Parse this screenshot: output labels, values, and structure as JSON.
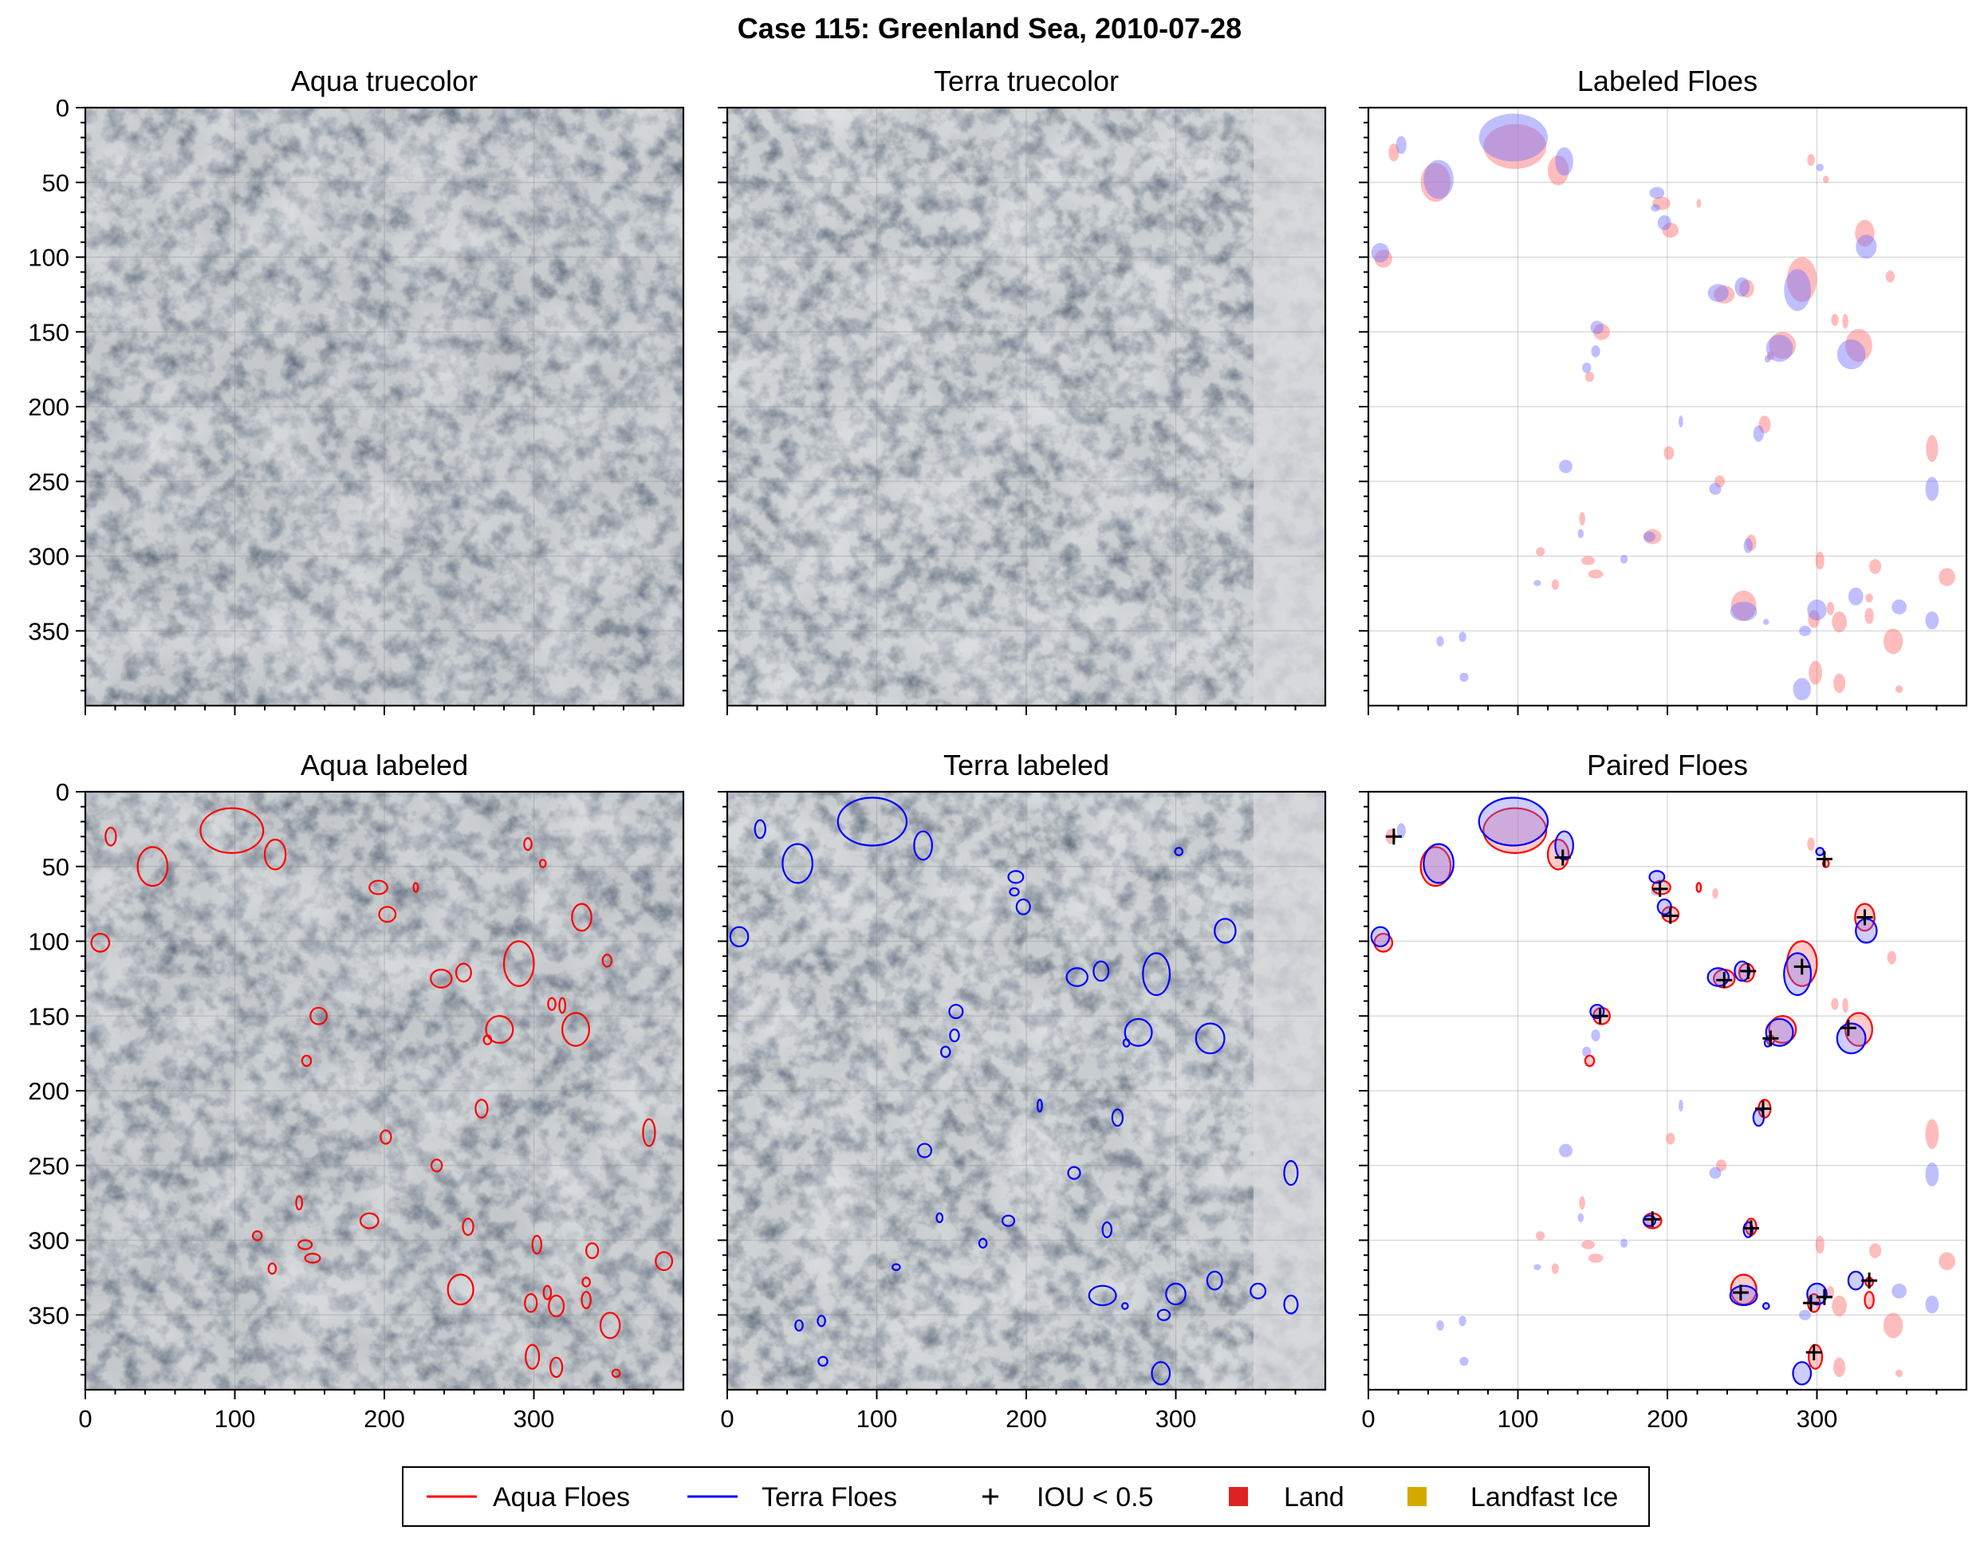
{
  "figure": {
    "suptitle": "Case 115: Greenland Sea, 2010-07-28"
  },
  "panels": {
    "p0": {
      "title": "Aqua truecolor"
    },
    "p1": {
      "title": "Terra truecolor"
    },
    "p2": {
      "title": "Labeled Floes"
    },
    "p3": {
      "title": "Aqua labeled"
    },
    "p4": {
      "title": "Terra labeled"
    },
    "p5": {
      "title": "Paired Floes"
    }
  },
  "legend": {
    "aqua": "Aqua Floes",
    "terra": "Terra Floes",
    "iou": "IOU < 0.5",
    "land": "Land",
    "landfast": "Landfast Ice"
  },
  "colors": {
    "aqua": "#ff0000",
    "terra": "#0000ff",
    "iou": "#000000",
    "land": "#dd2222",
    "landfast": "#d4aa00"
  },
  "chart_data": {
    "type": "image-grid",
    "panel_grid": [
      [
        "Aqua truecolor",
        "Terra truecolor",
        "Labeled Floes"
      ],
      [
        "Aqua labeled",
        "Terra labeled",
        "Paired Floes"
      ]
    ],
    "x_ticks": [
      0,
      100,
      200,
      300
    ],
    "y_ticks": [
      0,
      50,
      100,
      150,
      200,
      250,
      300,
      350
    ],
    "xlim": [
      0,
      400
    ],
    "ylim": [
      400,
      0
    ],
    "grid": true,
    "legend_position": "bottom-center",
    "aqua_floes": [
      {
        "x": 98,
        "y": 26,
        "w": 42,
        "h": 30
      },
      {
        "x": 45,
        "y": 50,
        "w": 20,
        "h": 26
      },
      {
        "x": 127,
        "y": 42,
        "w": 14,
        "h": 20
      },
      {
        "x": 17,
        "y": 30,
        "w": 7,
        "h": 12
      },
      {
        "x": 10,
        "y": 101,
        "w": 12,
        "h": 12
      },
      {
        "x": 196,
        "y": 64,
        "w": 12,
        "h": 9
      },
      {
        "x": 221,
        "y": 64,
        "w": 3,
        "h": 6
      },
      {
        "x": 202,
        "y": 82,
        "w": 11,
        "h": 10
      },
      {
        "x": 296,
        "y": 35,
        "w": 5,
        "h": 8
      },
      {
        "x": 306,
        "y": 48,
        "w": 4,
        "h": 5
      },
      {
        "x": 332,
        "y": 84,
        "w": 13,
        "h": 18
      },
      {
        "x": 349,
        "y": 113,
        "w": 6,
        "h": 8
      },
      {
        "x": 238,
        "y": 125,
        "w": 14,
        "h": 12
      },
      {
        "x": 253,
        "y": 121,
        "w": 10,
        "h": 12
      },
      {
        "x": 290,
        "y": 115,
        "w": 20,
        "h": 30
      },
      {
        "x": 312,
        "y": 142,
        "w": 5,
        "h": 8
      },
      {
        "x": 319,
        "y": 143,
        "w": 4,
        "h": 10
      },
      {
        "x": 328,
        "y": 159,
        "w": 18,
        "h": 22
      },
      {
        "x": 156,
        "y": 150,
        "w": 11,
        "h": 11
      },
      {
        "x": 277,
        "y": 159,
        "w": 18,
        "h": 18
      },
      {
        "x": 269,
        "y": 166,
        "w": 5,
        "h": 6
      },
      {
        "x": 148,
        "y": 180,
        "w": 6,
        "h": 7
      },
      {
        "x": 265,
        "y": 212,
        "w": 8,
        "h": 12
      },
      {
        "x": 377,
        "y": 228,
        "w": 8,
        "h": 18
      },
      {
        "x": 201,
        "y": 231,
        "w": 7,
        "h": 9
      },
      {
        "x": 235,
        "y": 250,
        "w": 7,
        "h": 8
      },
      {
        "x": 190,
        "y": 287,
        "w": 12,
        "h": 10
      },
      {
        "x": 143,
        "y": 275,
        "w": 4,
        "h": 9
      },
      {
        "x": 115,
        "y": 297,
        "w": 6,
        "h": 6
      },
      {
        "x": 256,
        "y": 291,
        "w": 7,
        "h": 11
      },
      {
        "x": 147,
        "y": 303,
        "w": 9,
        "h": 6
      },
      {
        "x": 152,
        "y": 312,
        "w": 10,
        "h": 6
      },
      {
        "x": 125,
        "y": 319,
        "w": 5,
        "h": 7
      },
      {
        "x": 302,
        "y": 303,
        "w": 6,
        "h": 12
      },
      {
        "x": 339,
        "y": 307,
        "w": 8,
        "h": 10
      },
      {
        "x": 387,
        "y": 314,
        "w": 11,
        "h": 12
      },
      {
        "x": 251,
        "y": 333,
        "w": 17,
        "h": 20
      },
      {
        "x": 298,
        "y": 342,
        "w": 8,
        "h": 12
      },
      {
        "x": 309,
        "y": 335,
        "w": 5,
        "h": 9
      },
      {
        "x": 315,
        "y": 344,
        "w": 10,
        "h": 14
      },
      {
        "x": 335,
        "y": 340,
        "w": 6,
        "h": 11
      },
      {
        "x": 335,
        "y": 328,
        "w": 5,
        "h": 6
      },
      {
        "x": 351,
        "y": 357,
        "w": 13,
        "h": 17
      },
      {
        "x": 299,
        "y": 378,
        "w": 9,
        "h": 16
      },
      {
        "x": 315,
        "y": 385,
        "w": 8,
        "h": 13
      },
      {
        "x": 355,
        "y": 389,
        "w": 5,
        "h": 5
      }
    ],
    "terra_floes": [
      {
        "x": 97,
        "y": 20,
        "w": 46,
        "h": 32
      },
      {
        "x": 47,
        "y": 48,
        "w": 20,
        "h": 26
      },
      {
        "x": 131,
        "y": 36,
        "w": 12,
        "h": 19
      },
      {
        "x": 22,
        "y": 25,
        "w": 7,
        "h": 12
      },
      {
        "x": 8,
        "y": 97,
        "w": 12,
        "h": 13
      },
      {
        "x": 193,
        "y": 57,
        "w": 10,
        "h": 8
      },
      {
        "x": 192,
        "y": 67,
        "w": 6,
        "h": 5
      },
      {
        "x": 198,
        "y": 77,
        "w": 9,
        "h": 10
      },
      {
        "x": 302,
        "y": 40,
        "w": 5,
        "h": 5
      },
      {
        "x": 333,
        "y": 93,
        "w": 14,
        "h": 16
      },
      {
        "x": 234,
        "y": 124,
        "w": 14,
        "h": 12
      },
      {
        "x": 250,
        "y": 120,
        "w": 10,
        "h": 13
      },
      {
        "x": 287,
        "y": 122,
        "w": 18,
        "h": 28
      },
      {
        "x": 153,
        "y": 147,
        "w": 9,
        "h": 9
      },
      {
        "x": 275,
        "y": 161,
        "w": 18,
        "h": 18
      },
      {
        "x": 267,
        "y": 168,
        "w": 4,
        "h": 5
      },
      {
        "x": 323,
        "y": 165,
        "w": 19,
        "h": 20
      },
      {
        "x": 152,
        "y": 163,
        "w": 6,
        "h": 8
      },
      {
        "x": 146,
        "y": 174,
        "w": 6,
        "h": 7
      },
      {
        "x": 209,
        "y": 210,
        "w": 3,
        "h": 8
      },
      {
        "x": 261,
        "y": 218,
        "w": 7,
        "h": 11
      },
      {
        "x": 132,
        "y": 240,
        "w": 9,
        "h": 9
      },
      {
        "x": 377,
        "y": 255,
        "w": 9,
        "h": 16
      },
      {
        "x": 232,
        "y": 255,
        "w": 8,
        "h": 8
      },
      {
        "x": 188,
        "y": 287,
        "w": 8,
        "h": 7
      },
      {
        "x": 142,
        "y": 285,
        "w": 4,
        "h": 6
      },
      {
        "x": 254,
        "y": 293,
        "w": 6,
        "h": 10
      },
      {
        "x": 171,
        "y": 302,
        "w": 5,
        "h": 6
      },
      {
        "x": 113,
        "y": 318,
        "w": 5,
        "h": 4
      },
      {
        "x": 326,
        "y": 327,
        "w": 10,
        "h": 12
      },
      {
        "x": 251,
        "y": 337,
        "w": 18,
        "h": 13
      },
      {
        "x": 300,
        "y": 336,
        "w": 13,
        "h": 14
      },
      {
        "x": 355,
        "y": 334,
        "w": 10,
        "h": 10
      },
      {
        "x": 377,
        "y": 343,
        "w": 9,
        "h": 12
      },
      {
        "x": 292,
        "y": 350,
        "w": 8,
        "h": 7
      },
      {
        "x": 266,
        "y": 344,
        "w": 4,
        "h": 4
      },
      {
        "x": 48,
        "y": 357,
        "w": 5,
        "h": 7
      },
      {
        "x": 63,
        "y": 354,
        "w": 5,
        "h": 7
      },
      {
        "x": 290,
        "y": 389,
        "w": 12,
        "h": 15
      },
      {
        "x": 64,
        "y": 381,
        "w": 6,
        "h": 6
      }
    ],
    "iou_below_0_5": [
      {
        "x": 17,
        "y": 30
      },
      {
        "x": 130,
        "y": 44
      },
      {
        "x": 305,
        "y": 45
      },
      {
        "x": 195,
        "y": 65
      },
      {
        "x": 202,
        "y": 83
      },
      {
        "x": 332,
        "y": 84
      },
      {
        "x": 238,
        "y": 126
      },
      {
        "x": 254,
        "y": 120
      },
      {
        "x": 290,
        "y": 117
      },
      {
        "x": 155,
        "y": 150
      },
      {
        "x": 321,
        "y": 158
      },
      {
        "x": 269,
        "y": 165
      },
      {
        "x": 264,
        "y": 212
      },
      {
        "x": 190,
        "y": 286
      },
      {
        "x": 256,
        "y": 292
      },
      {
        "x": 335,
        "y": 327
      },
      {
        "x": 249,
        "y": 335
      },
      {
        "x": 305,
        "y": 338
      },
      {
        "x": 296,
        "y": 342
      },
      {
        "x": 298,
        "y": 375
      }
    ],
    "unpaired_aqua": [
      {
        "x": 15,
        "y": 30,
        "w": 7,
        "h": 10
      },
      {
        "x": 232,
        "y": 68,
        "w": 4,
        "h": 7
      },
      {
        "x": 296,
        "y": 35,
        "w": 5,
        "h": 9
      },
      {
        "x": 350,
        "y": 111,
        "w": 6,
        "h": 9
      },
      {
        "x": 319,
        "y": 143,
        "w": 4,
        "h": 10
      },
      {
        "x": 312,
        "y": 142,
        "w": 5,
        "h": 8
      },
      {
        "x": 377,
        "y": 229,
        "w": 9,
        "h": 20
      },
      {
        "x": 202,
        "y": 232,
        "w": 6,
        "h": 8
      },
      {
        "x": 236,
        "y": 250,
        "w": 7,
        "h": 8
      },
      {
        "x": 143,
        "y": 275,
        "w": 4,
        "h": 9
      },
      {
        "x": 115,
        "y": 297,
        "w": 6,
        "h": 6
      },
      {
        "x": 147,
        "y": 303,
        "w": 9,
        "h": 6
      },
      {
        "x": 152,
        "y": 312,
        "w": 10,
        "h": 6
      },
      {
        "x": 125,
        "y": 319,
        "w": 5,
        "h": 7
      },
      {
        "x": 302,
        "y": 303,
        "w": 6,
        "h": 12
      },
      {
        "x": 339,
        "y": 307,
        "w": 8,
        "h": 10
      },
      {
        "x": 387,
        "y": 314,
        "w": 11,
        "h": 12
      },
      {
        "x": 315,
        "y": 344,
        "w": 10,
        "h": 14
      },
      {
        "x": 351,
        "y": 357,
        "w": 13,
        "h": 17
      },
      {
        "x": 315,
        "y": 385,
        "w": 8,
        "h": 13
      },
      {
        "x": 355,
        "y": 389,
        "w": 5,
        "h": 5
      },
      {
        "x": 309,
        "y": 335,
        "w": 5,
        "h": 9
      }
    ],
    "unpaired_terra": [
      {
        "x": 22,
        "y": 26,
        "w": 6,
        "h": 10
      },
      {
        "x": 192,
        "y": 67,
        "w": 6,
        "h": 5
      },
      {
        "x": 146,
        "y": 174,
        "w": 6,
        "h": 7
      },
      {
        "x": 152,
        "y": 163,
        "w": 6,
        "h": 8
      },
      {
        "x": 209,
        "y": 210,
        "w": 3,
        "h": 8
      },
      {
        "x": 132,
        "y": 240,
        "w": 9,
        "h": 9
      },
      {
        "x": 377,
        "y": 256,
        "w": 9,
        "h": 16
      },
      {
        "x": 232,
        "y": 255,
        "w": 8,
        "h": 8
      },
      {
        "x": 142,
        "y": 285,
        "w": 4,
        "h": 6
      },
      {
        "x": 171,
        "y": 302,
        "w": 5,
        "h": 6
      },
      {
        "x": 113,
        "y": 318,
        "w": 5,
        "h": 4
      },
      {
        "x": 377,
        "y": 343,
        "w": 9,
        "h": 12
      },
      {
        "x": 292,
        "y": 350,
        "w": 8,
        "h": 7
      },
      {
        "x": 48,
        "y": 357,
        "w": 5,
        "h": 7
      },
      {
        "x": 63,
        "y": 354,
        "w": 5,
        "h": 7
      },
      {
        "x": 64,
        "y": 381,
        "w": 6,
        "h": 6
      },
      {
        "x": 355,
        "y": 334,
        "w": 10,
        "h": 10
      }
    ]
  }
}
